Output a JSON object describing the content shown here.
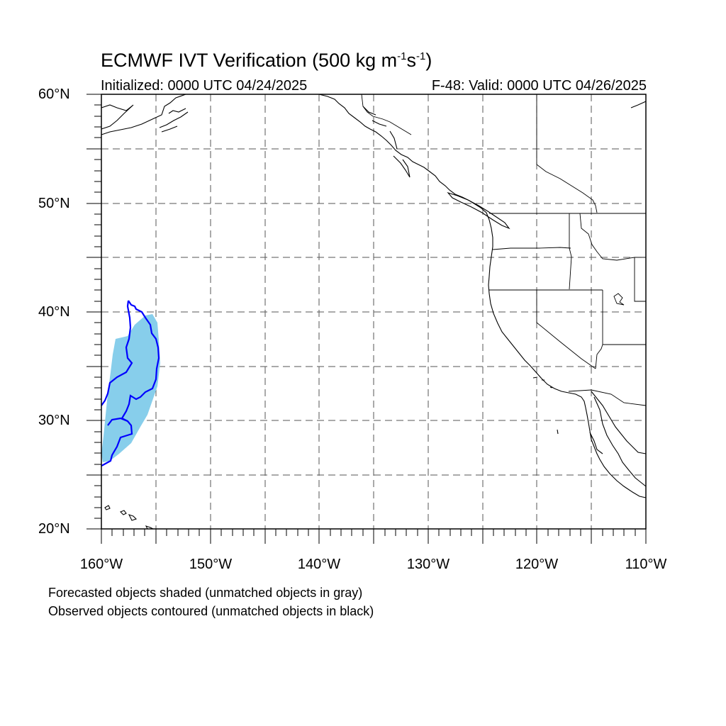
{
  "title": {
    "main": "ECMWF IVT Verification (500 kg m",
    "exp1": "-1",
    "mid": "s",
    "exp2": "-1",
    "end": ")"
  },
  "subtitle": {
    "initialized": "Initialized: 0000 UTC 04/24/2025",
    "valid": "F-48: Valid: 0000 UTC 04/26/2025"
  },
  "axes": {
    "lat_labels": [
      "60°N",
      "50°N",
      "40°N",
      "30°N",
      "20°N"
    ],
    "lon_labels": [
      "160°W",
      "150°W",
      "140°W",
      "130°W",
      "120°W",
      "110°W"
    ],
    "lat_range": [
      20,
      60
    ],
    "lon_range": [
      -160,
      -110
    ],
    "grid": "dashed every 5 degrees"
  },
  "legend": {
    "forecast_note": "Forecasted objects shaded (unmatched objects in gray)",
    "observed_note": "Observed objects contoured (unmatched objects in black)"
  },
  "colors": {
    "forecast_shade": "#87ceeb",
    "observed_contour": "#0000ff",
    "coastline": "#000000",
    "grid": "#555555"
  }
}
